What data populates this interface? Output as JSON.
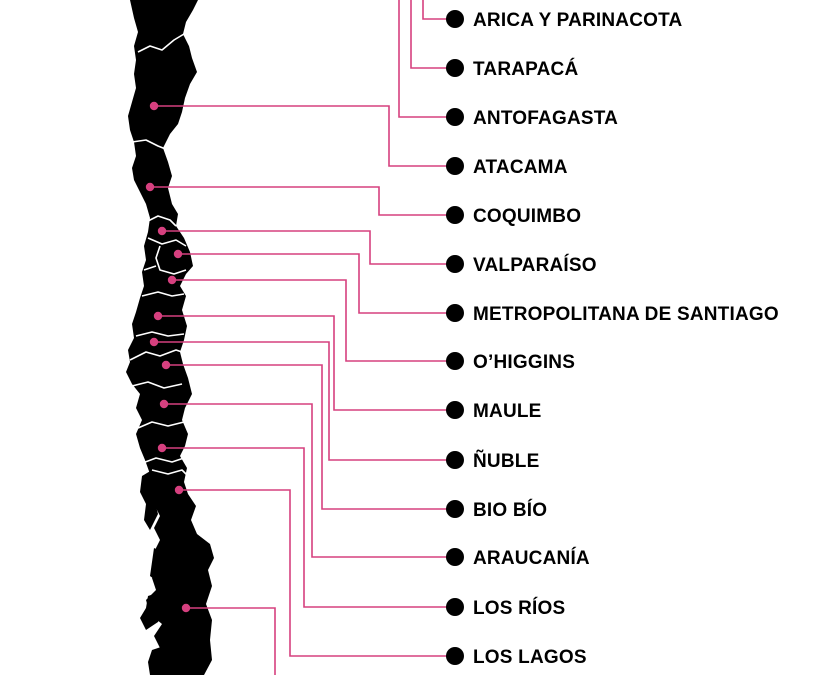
{
  "map": {
    "country_fill": "#000000",
    "border_color": "#ffffff",
    "leader_color": "#d6407f",
    "marker_color": "#d6407f",
    "bullet_color": "#000000"
  },
  "regions": [
    {
      "name": "ARICA Y PARINACOTA"
    },
    {
      "name": "TARAPACÁ"
    },
    {
      "name": "ANTOFAGASTA"
    },
    {
      "name": "ATACAMA"
    },
    {
      "name": "COQUIMBO"
    },
    {
      "name": "VALPARAÍSO"
    },
    {
      "name": "METROPOLITANA DE SANTIAGO"
    },
    {
      "name": "O’HIGGINS"
    },
    {
      "name": "MAULE"
    },
    {
      "name": "ÑUBLE"
    },
    {
      "name": "BIO BÍO"
    },
    {
      "name": "ARAUCANÍA"
    },
    {
      "name": "LOS RÍOS"
    },
    {
      "name": "LOS LAGOS"
    }
  ]
}
